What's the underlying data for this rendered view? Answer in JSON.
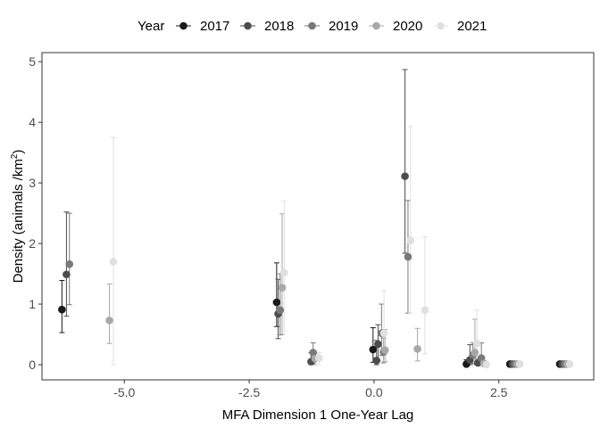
{
  "chart_data": {
    "type": "scatter",
    "title": "",
    "xlabel": "MFA Dimension 1 One-Year Lag",
    "ylabel_main": "Density (animals /km",
    "ylabel_sup": "2",
    "ylabel_close": ")",
    "xlim": [
      -6.65,
      4.4
    ],
    "ylim": [
      -0.25,
      5.15
    ],
    "xticks": [
      -5.0,
      -2.5,
      0.0,
      2.5
    ],
    "xtick_labels": [
      "-5.0",
      "-2.5",
      "0.0",
      "2.5"
    ],
    "yticks": [
      0,
      1,
      2,
      3,
      4,
      5
    ],
    "ytick_labels": [
      "0",
      "1",
      "2",
      "3",
      "4",
      "5"
    ],
    "grid": false,
    "legend": {
      "title": "Year",
      "position": "top",
      "entries": [
        "2017",
        "2018",
        "2019",
        "2020",
        "2021"
      ]
    },
    "series": [
      {
        "name": "2017",
        "color": "#1a1a1a",
        "points": [
          {
            "x": -6.25,
            "y": 0.91,
            "lo": 0.53,
            "hi": 1.39
          },
          {
            "x": -1.95,
            "y": 1.03,
            "lo": 0.63,
            "hi": 1.68
          },
          {
            "x": -0.02,
            "y": 0.25,
            "lo": 0.04,
            "hi": 0.61
          },
          {
            "x": 1.85,
            "y": 0.01,
            "lo": 0.0,
            "hi": 0.08
          },
          {
            "x": 2.72,
            "y": 0.01,
            "lo": 0.0,
            "hi": 0.01
          },
          {
            "x": 3.72,
            "y": 0.01,
            "lo": 0.0,
            "hi": 0.01
          }
        ]
      },
      {
        "name": "2018",
        "color": "#4d4d4d",
        "points": [
          {
            "x": -6.16,
            "y": 1.49,
            "lo": 0.8,
            "hi": 2.52
          },
          {
            "x": -1.92,
            "y": 0.84,
            "lo": 0.43,
            "hi": 1.41
          },
          {
            "x": -1.26,
            "y": 0.05,
            "lo": 0.0,
            "hi": 0.2
          },
          {
            "x": 0.05,
            "y": 0.07,
            "lo": 0.0,
            "hi": 0.4
          },
          {
            "x": 0.08,
            "y": 0.34,
            "lo": 0.07,
            "hi": 0.66
          },
          {
            "x": 0.62,
            "y": 3.11,
            "lo": 1.84,
            "hi": 4.87
          },
          {
            "x": 1.92,
            "y": 0.08,
            "lo": 0.0,
            "hi": 0.33
          },
          {
            "x": 2.08,
            "y": 0.03,
            "lo": 0.0,
            "hi": 0.1
          },
          {
            "x": 2.77,
            "y": 0.01,
            "lo": 0.0,
            "hi": 0.01
          },
          {
            "x": 3.77,
            "y": 0.01,
            "lo": 0.0,
            "hi": 0.01
          }
        ]
      },
      {
        "name": "2019",
        "color": "#7a7a7a",
        "points": [
          {
            "x": -6.1,
            "y": 1.66,
            "lo": 0.99,
            "hi": 2.5
          },
          {
            "x": -1.88,
            "y": 0.9,
            "lo": 0.49,
            "hi": 1.5
          },
          {
            "x": -1.22,
            "y": 0.2,
            "lo": 0.06,
            "hi": 0.36
          },
          {
            "x": 0.15,
            "y": 0.52,
            "lo": 0.15,
            "hi": 1.0
          },
          {
            "x": 0.19,
            "y": 0.21,
            "lo": 0.03,
            "hi": 0.44
          },
          {
            "x": 0.68,
            "y": 1.78,
            "lo": 0.85,
            "hi": 2.71
          },
          {
            "x": 1.98,
            "y": 0.16,
            "lo": 0.02,
            "hi": 0.36
          },
          {
            "x": 2.15,
            "y": 0.11,
            "lo": 0.0,
            "hi": 0.36
          },
          {
            "x": 2.82,
            "y": 0.01,
            "lo": 0.0,
            "hi": 0.01
          },
          {
            "x": 3.82,
            "y": 0.01,
            "lo": 0.0,
            "hi": 0.01
          }
        ]
      },
      {
        "name": "2020",
        "color": "#a8a8a8",
        "points": [
          {
            "x": -5.3,
            "y": 0.73,
            "lo": 0.35,
            "hi": 1.33
          },
          {
            "x": -1.84,
            "y": 1.27,
            "lo": 0.5,
            "hi": 2.49
          },
          {
            "x": -1.18,
            "y": 0.1,
            "lo": 0.0,
            "hi": 0.19
          },
          {
            "x": 0.22,
            "y": 0.24,
            "lo": 0.05,
            "hi": 0.58
          },
          {
            "x": 0.87,
            "y": 0.26,
            "lo": 0.06,
            "hi": 0.6
          },
          {
            "x": 2.02,
            "y": 0.2,
            "lo": 0.0,
            "hi": 0.75
          },
          {
            "x": 2.2,
            "y": 0.02,
            "lo": 0.0,
            "hi": 0.07
          },
          {
            "x": 2.87,
            "y": 0.01,
            "lo": 0.0,
            "hi": 0.01
          },
          {
            "x": 3.87,
            "y": 0.01,
            "lo": 0.0,
            "hi": 0.01
          }
        ]
      },
      {
        "name": "2021",
        "color": "#e0e0e0",
        "points": [
          {
            "x": -5.22,
            "y": 1.7,
            "lo": 0.0,
            "hi": 3.75
          },
          {
            "x": -1.8,
            "y": 1.52,
            "lo": 0.55,
            "hi": 2.7
          },
          {
            "x": -1.1,
            "y": 0.11,
            "lo": 0.0,
            "hi": 0.2
          },
          {
            "x": 0.2,
            "y": 0.52,
            "lo": 0.07,
            "hi": 1.22
          },
          {
            "x": 0.73,
            "y": 2.05,
            "lo": 0.85,
            "hi": 3.93
          },
          {
            "x": 1.02,
            "y": 0.9,
            "lo": 0.18,
            "hi": 2.11
          },
          {
            "x": 2.06,
            "y": 0.35,
            "lo": 0.02,
            "hi": 0.9
          },
          {
            "x": 2.25,
            "y": 0.0,
            "lo": 0.0,
            "hi": 0.03
          },
          {
            "x": 2.92,
            "y": 0.01,
            "lo": 0.0,
            "hi": 0.01
          },
          {
            "x": 3.92,
            "y": 0.01,
            "lo": 0.0,
            "hi": 0.01
          }
        ]
      }
    ]
  }
}
